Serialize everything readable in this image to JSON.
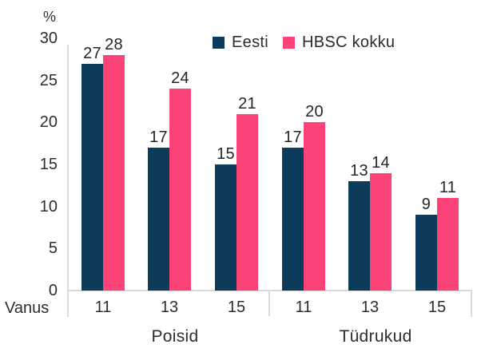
{
  "chart_data": {
    "type": "bar",
    "title": "",
    "unit_label": "%",
    "x_axis_label": "Vanus",
    "ylim": [
      0,
      30
    ],
    "y_ticks": [
      30,
      25,
      20,
      15,
      10,
      5,
      0
    ],
    "grid": false,
    "legend_position": "top",
    "groups": [
      {
        "label": "Poisid",
        "categories": [
          "11",
          "13",
          "15"
        ]
      },
      {
        "label": "Tüdrukud",
        "categories": [
          "11",
          "13",
          "15"
        ]
      }
    ],
    "series": [
      {
        "name": "Eesti",
        "color": "#0d3b5c",
        "values": [
          [
            27,
            17,
            15
          ],
          [
            17,
            13,
            9
          ]
        ]
      },
      {
        "name": "HBSC kokku",
        "color": "#fc4378",
        "values": [
          [
            28,
            24,
            21
          ],
          [
            20,
            14,
            11
          ]
        ]
      }
    ],
    "colors": {
      "axis_line": "#d9d9d9",
      "text": "#2d2d2d"
    }
  }
}
